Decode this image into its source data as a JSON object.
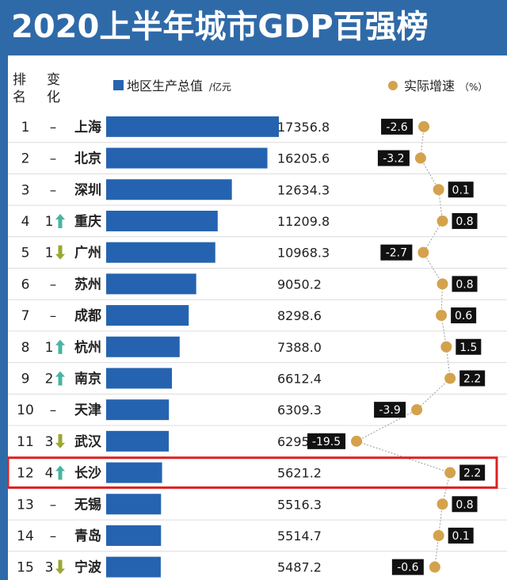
{
  "title": "2020上半年城市GDP百强榜",
  "header": {
    "rank_label": [
      "排",
      "名"
    ],
    "change_label": [
      "变",
      "化"
    ],
    "gdp_legend": "地区生产总值",
    "gdp_unit": "/亿元",
    "growth_legend": "实际增速",
    "growth_unit": "（%）"
  },
  "colors": {
    "bar": "#2563b0",
    "dot": "#d4a24c",
    "up_arrow": "#4bb3a0",
    "down_arrow": "#9aa832",
    "highlight": "#e02020",
    "label_bg": "#111111"
  },
  "chart_data": {
    "type": "bar",
    "highlight_rank": 12,
    "categories": [
      "上海",
      "北京",
      "深圳",
      "重庆",
      "广州",
      "苏州",
      "成都",
      "杭州",
      "南京",
      "天津",
      "武汉",
      "长沙",
      "无锡",
      "青岛",
      "宁波"
    ],
    "ranks": [
      "1",
      "2",
      "3",
      "4",
      "5",
      "6",
      "7",
      "8",
      "9",
      "10",
      "11",
      "12",
      "13",
      "14",
      "15"
    ],
    "changes": [
      {
        "dir": "none",
        "num": "–"
      },
      {
        "dir": "none",
        "num": "–"
      },
      {
        "dir": "none",
        "num": "–"
      },
      {
        "dir": "up",
        "num": "1"
      },
      {
        "dir": "down",
        "num": "1"
      },
      {
        "dir": "none",
        "num": "–"
      },
      {
        "dir": "none",
        "num": "–"
      },
      {
        "dir": "up",
        "num": "1"
      },
      {
        "dir": "up",
        "num": "2"
      },
      {
        "dir": "none",
        "num": "–"
      },
      {
        "dir": "down",
        "num": "3"
      },
      {
        "dir": "up",
        "num": "4"
      },
      {
        "dir": "none",
        "num": "–"
      },
      {
        "dir": "none",
        "num": "–"
      },
      {
        "dir": "down",
        "num": "3"
      }
    ],
    "series": [
      {
        "name": "地区生产总值",
        "values": [
          17356.8,
          16205.6,
          12634.3,
          11209.8,
          10968.3,
          9050.2,
          8298.6,
          7388.0,
          6612.4,
          6309.3,
          6295.3,
          5621.2,
          5516.3,
          5514.7,
          5487.2
        ],
        "labels": [
          "17356.8",
          "16205.6",
          "12634.3",
          "11209.8",
          "10968.3",
          "9050.2",
          "8298.6",
          "7388.0",
          "6612.4",
          "6309.3",
          "6295.3",
          "5621.2",
          "5516.3",
          "5514.7",
          "5487.2"
        ]
      },
      {
        "name": "实际增速",
        "values": [
          -2.6,
          -3.2,
          0.1,
          0.8,
          -2.7,
          0.8,
          0.6,
          1.5,
          2.2,
          -3.9,
          -19.5,
          2.2,
          0.8,
          0.1,
          -0.6
        ],
        "labels": [
          "-2.6",
          "-3.2",
          "0.1",
          "0.8",
          "-2.7",
          "0.8",
          "0.6",
          "1.5",
          "2.2",
          "-3.9",
          "-19.5",
          "2.2",
          "0.8",
          "0.1",
          "-0.6"
        ]
      }
    ]
  }
}
